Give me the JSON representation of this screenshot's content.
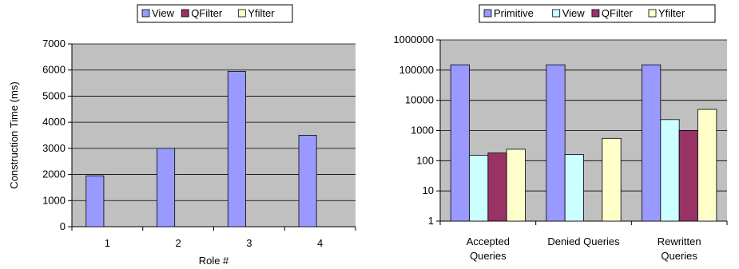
{
  "chart_data": [
    {
      "type": "bar",
      "series": [
        {
          "name": "View",
          "color": "#9999ff",
          "values": [
            1950,
            3000,
            5950,
            3500
          ]
        }
      ],
      "legend": [
        "View",
        "QFilter",
        "Yfilter"
      ],
      "legend_colors": [
        "#9999ff",
        "#993366",
        "#ffffcc"
      ],
      "legend_position": "top",
      "categories": [
        "1",
        "2",
        "3",
        "4"
      ],
      "xlabel": "Role #",
      "ylabel": "Construction Time (ms)",
      "ylim": [
        0,
        7000
      ],
      "yticks": [
        "0",
        "1000",
        "2000",
        "3000",
        "4000",
        "5000",
        "6000",
        "7000"
      ],
      "grid": true
    },
    {
      "type": "bar",
      "yscale": "log",
      "series": [
        {
          "name": "Primitive",
          "color": "#9999ff",
          "values": [
            150000,
            150000,
            150000
          ]
        },
        {
          "name": "View",
          "color": "#ccffff",
          "values": [
            150,
            160,
            2300
          ]
        },
        {
          "name": "QFilter",
          "color": "#993366",
          "values": [
            180,
            null,
            1000
          ]
        },
        {
          "name": "Yfilter",
          "color": "#ffffcc",
          "values": [
            240,
            550,
            5000
          ]
        }
      ],
      "legend_position": "top",
      "categories": [
        [
          "Accepted",
          "Queries"
        ],
        [
          "Denied Queries"
        ],
        [
          "Rewritten",
          "Queries"
        ]
      ],
      "ylim": [
        1,
        1000000
      ],
      "yticks": [
        "1",
        "10",
        "100",
        "1000",
        "10000",
        "100000",
        "1000000"
      ],
      "grid": true
    }
  ]
}
